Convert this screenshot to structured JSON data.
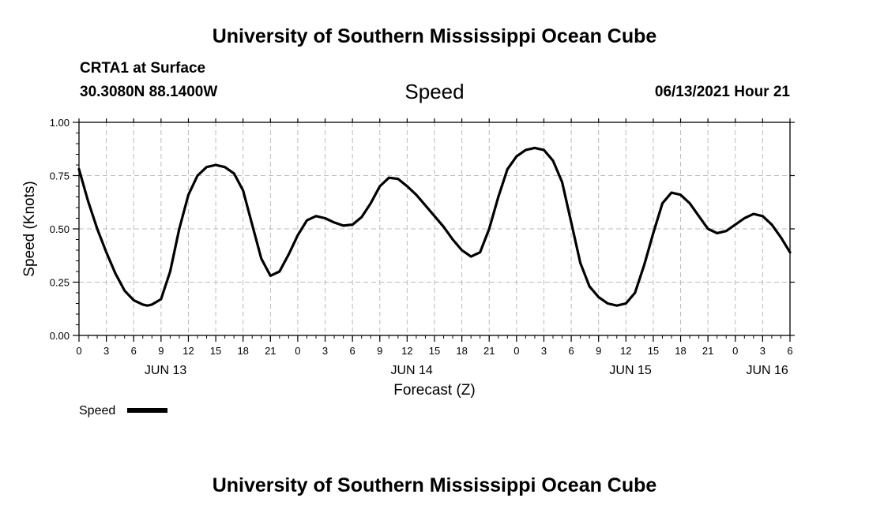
{
  "header": {
    "title": "University of Southern Mississippi Ocean Cube",
    "station": "CRTA1 at Surface",
    "coords": "30.3080N  88.1400W",
    "variable": "Speed",
    "issued": "06/13/2021 Hour 21"
  },
  "footer": {
    "title": "University of Southern Mississippi Ocean Cube"
  },
  "colors": {
    "line": "#000000",
    "grid": "#bbbbbb",
    "background": "#ffffff"
  },
  "chart_data": {
    "type": "line",
    "title": "Speed",
    "xlabel": "Forecast (Z)",
    "ylabel": "Speed (Knots)",
    "xlim": [
      0,
      78
    ],
    "ylim": [
      0,
      1.0
    ],
    "grid": true,
    "y_ticks": [
      0.0,
      0.25,
      0.5,
      0.75,
      1.0
    ],
    "y_tick_labels": [
      "0.00",
      "0.25",
      "0.50",
      "0.75",
      "1.00"
    ],
    "x_ticks": [
      0,
      3,
      6,
      9,
      12,
      15,
      18,
      21,
      24,
      27,
      30,
      33,
      36,
      39,
      42,
      45,
      48,
      51,
      54,
      57,
      60,
      63,
      66,
      69,
      72,
      75,
      78
    ],
    "x_tick_labels": [
      "0",
      "3",
      "6",
      "9",
      "12",
      "15",
      "18",
      "21",
      "0",
      "3",
      "6",
      "9",
      "12",
      "15",
      "18",
      "21",
      "0",
      "3",
      "6",
      "9",
      "12",
      "15",
      "18",
      "21",
      "0",
      "3",
      "6"
    ],
    "date_labels": [
      {
        "x": 9.5,
        "label": "JUN 13"
      },
      {
        "x": 36.5,
        "label": "JUN 14"
      },
      {
        "x": 60.5,
        "label": "JUN 15"
      },
      {
        "x": 75.5,
        "label": "JUN 16"
      }
    ],
    "legend": {
      "label": "Speed",
      "position": "bottom-left"
    },
    "series": [
      {
        "name": "Speed",
        "x": [
          0,
          1,
          2,
          3,
          4,
          5,
          6,
          7,
          7.5,
          8,
          9,
          10,
          11,
          12,
          13,
          14,
          15,
          16,
          17,
          18,
          19,
          20,
          21,
          22,
          23,
          24,
          25,
          26,
          27,
          28,
          29,
          30,
          31,
          32,
          33,
          34,
          35,
          36,
          37,
          38,
          39,
          40,
          41,
          42,
          43,
          44,
          45,
          46,
          47,
          48,
          49,
          50,
          51,
          52,
          53,
          54,
          55,
          56,
          57,
          58,
          59,
          60,
          61,
          62,
          63,
          64,
          65,
          66,
          67,
          68,
          69,
          70,
          71,
          72,
          73,
          74,
          75,
          76,
          77,
          78
        ],
        "values": [
          0.78,
          0.63,
          0.5,
          0.39,
          0.29,
          0.21,
          0.165,
          0.145,
          0.14,
          0.145,
          0.17,
          0.3,
          0.5,
          0.66,
          0.75,
          0.79,
          0.8,
          0.79,
          0.76,
          0.68,
          0.52,
          0.36,
          0.28,
          0.3,
          0.38,
          0.47,
          0.54,
          0.56,
          0.55,
          0.53,
          0.515,
          0.52,
          0.555,
          0.62,
          0.7,
          0.74,
          0.735,
          0.7,
          0.66,
          0.61,
          0.56,
          0.51,
          0.45,
          0.4,
          0.37,
          0.39,
          0.5,
          0.65,
          0.78,
          0.84,
          0.87,
          0.88,
          0.87,
          0.82,
          0.72,
          0.53,
          0.34,
          0.23,
          0.18,
          0.15,
          0.14,
          0.15,
          0.2,
          0.33,
          0.48,
          0.62,
          0.67,
          0.66,
          0.62,
          0.56,
          0.5,
          0.48,
          0.49,
          0.52,
          0.55,
          0.57,
          0.56,
          0.52,
          0.46,
          0.39
        ]
      }
    ]
  }
}
